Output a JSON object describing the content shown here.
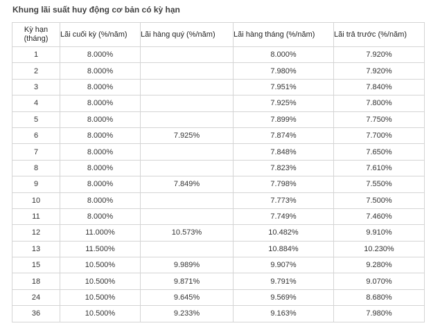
{
  "title": "Khung lãi suất huy động cơ bản có kỳ hạn",
  "table": {
    "headers": {
      "term_line1": "Kỳ hạn",
      "term_line2": "(tháng)",
      "end_of_term": "Lãi cuối kỳ (%/năm)",
      "quarterly": "Lãi hàng quý (%/năm)",
      "monthly": "Lãi hàng tháng (%/năm)",
      "prepaid": "Lãi trả trước (%/năm)"
    },
    "rows": [
      {
        "term": "1",
        "end_of_term": "8.000%",
        "quarterly": "",
        "monthly": "8.000%",
        "prepaid": "7.920%"
      },
      {
        "term": "2",
        "end_of_term": "8.000%",
        "quarterly": "",
        "monthly": "7.980%",
        "prepaid": "7.920%"
      },
      {
        "term": "3",
        "end_of_term": "8.000%",
        "quarterly": "",
        "monthly": "7.951%",
        "prepaid": "7.840%"
      },
      {
        "term": "4",
        "end_of_term": "8.000%",
        "quarterly": "",
        "monthly": "7.925%",
        "prepaid": "7.800%"
      },
      {
        "term": "5",
        "end_of_term": "8.000%",
        "quarterly": "",
        "monthly": "7.899%",
        "prepaid": "7.750%"
      },
      {
        "term": "6",
        "end_of_term": "8.000%",
        "quarterly": "7.925%",
        "monthly": "7.874%",
        "prepaid": "7.700%"
      },
      {
        "term": "7",
        "end_of_term": "8.000%",
        "quarterly": "",
        "monthly": "7.848%",
        "prepaid": "7.650%"
      },
      {
        "term": "8",
        "end_of_term": "8.000%",
        "quarterly": "",
        "monthly": "7.823%",
        "prepaid": "7.610%"
      },
      {
        "term": "9",
        "end_of_term": "8.000%",
        "quarterly": "7.849%",
        "monthly": "7.798%",
        "prepaid": "7.550%"
      },
      {
        "term": "10",
        "end_of_term": "8.000%",
        "quarterly": "",
        "monthly": "7.773%",
        "prepaid": "7.500%"
      },
      {
        "term": "11",
        "end_of_term": "8.000%",
        "quarterly": "",
        "monthly": "7.749%",
        "prepaid": "7.460%"
      },
      {
        "term": "12",
        "end_of_term": "11.000%",
        "quarterly": "10.573%",
        "monthly": "10.482%",
        "prepaid": "9.910%"
      },
      {
        "term": "13",
        "end_of_term": "11.500%",
        "quarterly": "",
        "monthly": "10.884%",
        "prepaid": "10.230%"
      },
      {
        "term": "15",
        "end_of_term": "10.500%",
        "quarterly": "9.989%",
        "monthly": "9.907%",
        "prepaid": "9.280%"
      },
      {
        "term": "18",
        "end_of_term": "10.500%",
        "quarterly": "9.871%",
        "monthly": "9.791%",
        "prepaid": "9.070%"
      },
      {
        "term": "24",
        "end_of_term": "10.500%",
        "quarterly": "9.645%",
        "monthly": "9.569%",
        "prepaid": "8.680%"
      },
      {
        "term": "36",
        "end_of_term": "10.500%",
        "quarterly": "9.233%",
        "monthly": "9.163%",
        "prepaid": "7.980%"
      }
    ]
  }
}
